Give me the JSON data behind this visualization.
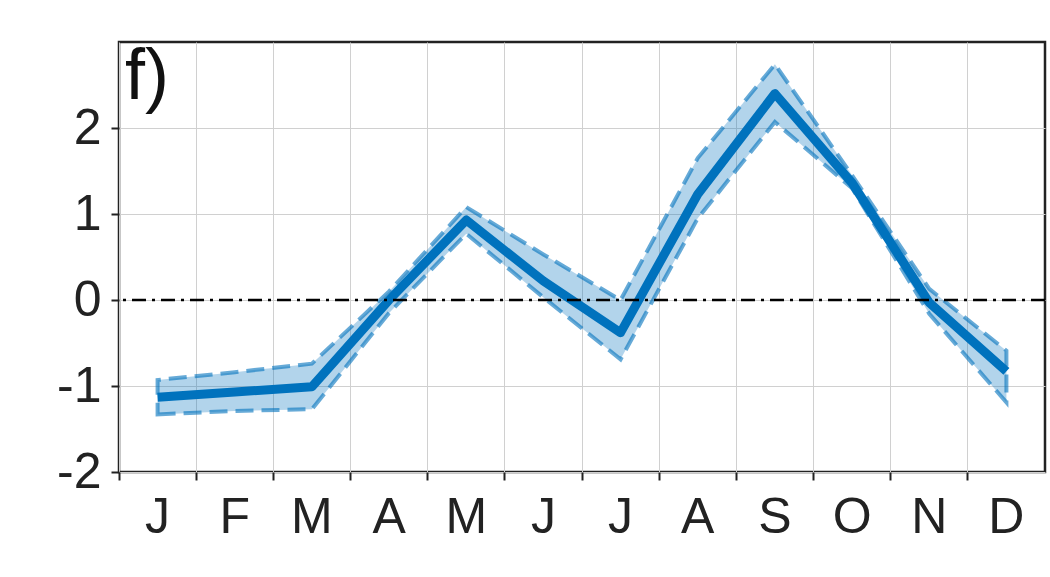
{
  "chart_data": {
    "type": "line",
    "annotations": [
      "f)"
    ],
    "categories": [
      "J",
      "F",
      "M",
      "A",
      "M",
      "J",
      "J",
      "A",
      "S",
      "O",
      "N",
      "D"
    ],
    "ylim": [
      -2,
      3
    ],
    "yticks": [
      -2,
      -1,
      0,
      1,
      2
    ],
    "series": [
      {
        "color": "#0072bd",
        "values": [
          -1.13,
          -1.07,
          -1.01,
          0.0,
          0.93,
          0.22,
          -0.38,
          1.23,
          2.4,
          1.36,
          -0.03,
          -0.83
        ],
        "lower": [
          -1.33,
          -1.29,
          -1.27,
          -0.15,
          0.77,
          0.03,
          -0.69,
          0.95,
          2.07,
          1.3,
          -0.16,
          -1.19
        ],
        "upper": [
          -0.93,
          -0.84,
          -0.74,
          0.1,
          1.08,
          0.53,
          0.0,
          1.65,
          2.74,
          1.45,
          0.13,
          -0.59
        ]
      }
    ],
    "ref_lines": [
      {
        "axis": "y",
        "value": 0,
        "color": "#000000",
        "line_style": "dashdot"
      }
    ],
    "grid": true,
    "marker": "none",
    "line_style": "solid"
  }
}
